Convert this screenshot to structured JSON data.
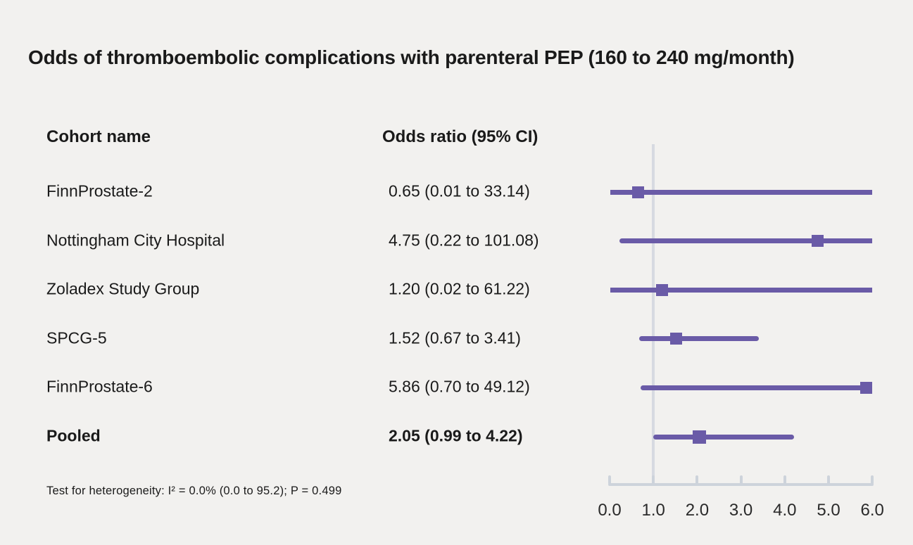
{
  "title": "Odds of thromboembolic complications with parenteral PEP (160 to 240 mg/month)",
  "columns": {
    "cohort": "Cohort name",
    "odds_ratio": "Odds ratio (95% CI)"
  },
  "footnote": "Test for heterogeneity: I² = 0.0% (0.0 to 95.2); P = 0.499",
  "colors": {
    "background": "#F2F1EF",
    "text": "#1A1A1A",
    "marker": "#6A5BA7",
    "axis": "#CDD3DB",
    "refline": "#D7DAE1"
  },
  "chart_data": {
    "type": "scatter",
    "subtype": "forest-plot",
    "title": "Odds of thromboembolic complications with parenteral PEP (160 to 240 mg/month)",
    "xlabel": "",
    "ylabel": "",
    "xlim": [
      0.0,
      6.0
    ],
    "x_ticks": [
      "0.0",
      "1.0",
      "2.0",
      "3.0",
      "4.0",
      "5.0",
      "6.0"
    ],
    "reference_line_x": 1.0,
    "grid": false,
    "legend": false,
    "rows": [
      {
        "cohort": "FinnProstate-2",
        "label": "0.65 (0.01 to 33.14)",
        "est": 0.65,
        "lo": 0.01,
        "hi": 33.14,
        "bold": false
      },
      {
        "cohort": "Nottingham City Hospital",
        "label": "4.75 (0.22 to 101.08)",
        "est": 4.75,
        "lo": 0.22,
        "hi": 101.08,
        "bold": false
      },
      {
        "cohort": "Zoladex Study Group",
        "label": "1.20 (0.02 to 61.22)",
        "est": 1.2,
        "lo": 0.02,
        "hi": 61.22,
        "bold": false
      },
      {
        "cohort": "SPCG-5",
        "label": "1.52 (0.67 to 3.41)",
        "est": 1.52,
        "lo": 0.67,
        "hi": 3.41,
        "bold": false
      },
      {
        "cohort": "FinnProstate-6",
        "label": "5.86 (0.70 to 49.12)",
        "est": 5.86,
        "lo": 0.7,
        "hi": 49.12,
        "bold": false
      },
      {
        "cohort": "Pooled",
        "label": "2.05 (0.99 to 4.22)",
        "est": 2.05,
        "lo": 0.99,
        "hi": 4.22,
        "bold": true
      }
    ]
  }
}
